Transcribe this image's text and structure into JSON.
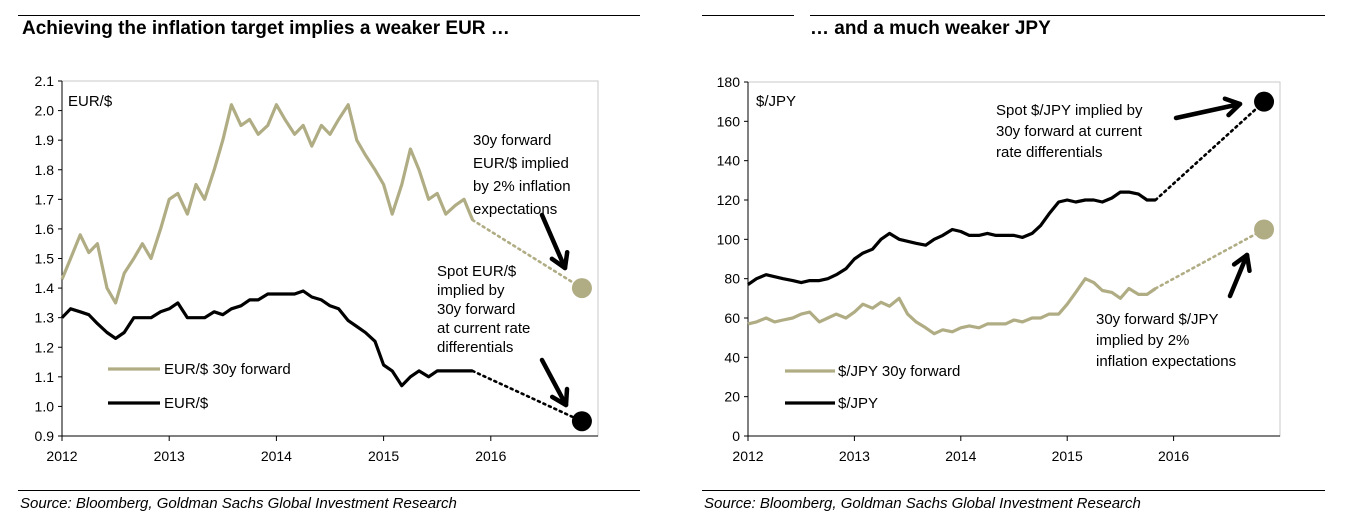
{
  "colors": {
    "black": "#000000",
    "forward": "#b0ad85",
    "box": "#c8c8c8"
  },
  "chart_data": [
    {
      "type": "line",
      "id": "left",
      "title": "Achieving the inflation target implies a weaker EUR …",
      "source": "Source: Bloomberg, Goldman Sachs Global Investment Research",
      "inner_label": "EUR/$",
      "x_ticks": [
        "2012",
        "2013",
        "2014",
        "2015",
        "2016"
      ],
      "xlim": [
        2012,
        2017
      ],
      "y_ticks": [
        "0.9",
        "1.0",
        "1.1",
        "1.2",
        "1.3",
        "1.4",
        "1.5",
        "1.6",
        "1.7",
        "1.8",
        "1.9",
        "2.0",
        "2.1"
      ],
      "ylim": [
        0.9,
        2.1
      ],
      "legend": [
        "EUR/$ 30y forward",
        "EUR/$"
      ],
      "series": [
        {
          "name": "EUR/$ 30y forward",
          "color": "#b0ad85",
          "x": [
            2012.0,
            2012.08,
            2012.17,
            2012.25,
            2012.33,
            2012.42,
            2012.5,
            2012.58,
            2012.67,
            2012.75,
            2012.83,
            2012.92,
            2013.0,
            2013.08,
            2013.17,
            2013.25,
            2013.33,
            2013.42,
            2013.5,
            2013.58,
            2013.67,
            2013.75,
            2013.83,
            2013.92,
            2014.0,
            2014.08,
            2014.17,
            2014.25,
            2014.33,
            2014.42,
            2014.5,
            2014.58,
            2014.67,
            2014.75,
            2014.83,
            2014.92,
            2015.0,
            2015.08,
            2015.17,
            2015.25,
            2015.33,
            2015.42,
            2015.5,
            2015.58,
            2015.67,
            2015.75,
            2015.83
          ],
          "values": [
            1.43,
            1.5,
            1.58,
            1.52,
            1.55,
            1.4,
            1.35,
            1.45,
            1.5,
            1.55,
            1.5,
            1.6,
            1.7,
            1.72,
            1.65,
            1.75,
            1.7,
            1.8,
            1.9,
            2.02,
            1.95,
            1.97,
            1.92,
            1.95,
            2.02,
            1.97,
            1.92,
            1.95,
            1.88,
            1.95,
            1.92,
            1.97,
            2.02,
            1.9,
            1.85,
            1.8,
            1.75,
            1.65,
            1.75,
            1.87,
            1.8,
            1.7,
            1.72,
            1.65,
            1.68,
            1.7,
            1.63
          ]
        },
        {
          "name": "EUR/$",
          "color": "#000000",
          "x": [
            2012.0,
            2012.08,
            2012.17,
            2012.25,
            2012.33,
            2012.42,
            2012.5,
            2012.58,
            2012.67,
            2012.75,
            2012.83,
            2012.92,
            2013.0,
            2013.08,
            2013.17,
            2013.25,
            2013.33,
            2013.42,
            2013.5,
            2013.58,
            2013.67,
            2013.75,
            2013.83,
            2013.92,
            2014.0,
            2014.08,
            2014.17,
            2014.25,
            2014.33,
            2014.42,
            2014.5,
            2014.58,
            2014.67,
            2014.75,
            2014.83,
            2014.92,
            2015.0,
            2015.08,
            2015.17,
            2015.25,
            2015.33,
            2015.42,
            2015.5,
            2015.58,
            2015.67,
            2015.75,
            2015.83
          ],
          "values": [
            1.3,
            1.33,
            1.32,
            1.31,
            1.28,
            1.25,
            1.23,
            1.25,
            1.3,
            1.3,
            1.3,
            1.32,
            1.33,
            1.35,
            1.3,
            1.3,
            1.3,
            1.32,
            1.31,
            1.33,
            1.34,
            1.36,
            1.36,
            1.38,
            1.38,
            1.38,
            1.38,
            1.39,
            1.37,
            1.36,
            1.34,
            1.33,
            1.29,
            1.27,
            1.25,
            1.22,
            1.14,
            1.12,
            1.07,
            1.1,
            1.12,
            1.1,
            1.12,
            1.12,
            1.12,
            1.12,
            1.12
          ]
        }
      ],
      "dotted_extensions": [
        {
          "series": "EUR/$ 30y forward",
          "from": [
            2015.83,
            1.63
          ],
          "to": [
            2016.85,
            1.4
          ],
          "color": "#b0ad85"
        },
        {
          "series": "EUR/$",
          "from": [
            2015.83,
            1.12
          ],
          "to": [
            2016.85,
            0.95
          ],
          "color": "#000000"
        }
      ],
      "end_points": [
        {
          "x": 2016.85,
          "y": 1.4,
          "color": "#b0ad85"
        },
        {
          "x": 2016.85,
          "y": 0.95,
          "color": "#000000"
        }
      ],
      "annotations": [
        {
          "lines": [
            "30y forward",
            "EUR/$ implied",
            "by 2% inflation",
            "expectations"
          ],
          "anchor": [
            2016.6,
            2.0
          ]
        },
        {
          "lines": [
            "Spot EUR/$",
            "implied by",
            "30y forward",
            "at current rate",
            "differentials"
          ],
          "anchor": [
            2016.55,
            1.45
          ]
        }
      ]
    },
    {
      "type": "line",
      "id": "right",
      "title": "… and a much weaker JPY",
      "source": "Source: Bloomberg, Goldman Sachs Global Investment Research",
      "inner_label": "$/JPY",
      "x_ticks": [
        "2012",
        "2013",
        "2014",
        "2015",
        "2016"
      ],
      "xlim": [
        2012,
        2017
      ],
      "y_ticks": [
        "0",
        "20",
        "40",
        "60",
        "80",
        "100",
        "120",
        "140",
        "160",
        "180"
      ],
      "ylim": [
        0,
        180
      ],
      "legend": [
        "$/JPY 30y forward",
        "$/JPY"
      ],
      "series": [
        {
          "name": "$/JPY 30y forward",
          "color": "#b0ad85",
          "x": [
            2012.0,
            2012.08,
            2012.17,
            2012.25,
            2012.33,
            2012.42,
            2012.5,
            2012.58,
            2012.67,
            2012.75,
            2012.83,
            2012.92,
            2013.0,
            2013.08,
            2013.17,
            2013.25,
            2013.33,
            2013.42,
            2013.5,
            2013.58,
            2013.67,
            2013.75,
            2013.83,
            2013.92,
            2014.0,
            2014.08,
            2014.17,
            2014.25,
            2014.33,
            2014.42,
            2014.5,
            2014.58,
            2014.67,
            2014.75,
            2014.83,
            2014.92,
            2015.0,
            2015.08,
            2015.17,
            2015.25,
            2015.33,
            2015.42,
            2015.5,
            2015.58,
            2015.67,
            2015.75,
            2015.83
          ],
          "values": [
            57,
            58,
            60,
            58,
            59,
            60,
            62,
            63,
            58,
            60,
            62,
            60,
            63,
            67,
            65,
            68,
            66,
            70,
            62,
            58,
            55,
            52,
            54,
            53,
            55,
            56,
            55,
            57,
            57,
            57,
            59,
            58,
            60,
            60,
            62,
            62,
            67,
            73,
            80,
            78,
            74,
            73,
            70,
            75,
            72,
            72,
            75
          ]
        },
        {
          "name": "$/JPY",
          "color": "#000000",
          "x": [
            2012.0,
            2012.08,
            2012.17,
            2012.25,
            2012.33,
            2012.42,
            2012.5,
            2012.58,
            2012.67,
            2012.75,
            2012.83,
            2012.92,
            2013.0,
            2013.08,
            2013.17,
            2013.25,
            2013.33,
            2013.42,
            2013.5,
            2013.58,
            2013.67,
            2013.75,
            2013.83,
            2013.92,
            2014.0,
            2014.08,
            2014.17,
            2014.25,
            2014.33,
            2014.42,
            2014.5,
            2014.58,
            2014.67,
            2014.75,
            2014.83,
            2014.92,
            2015.0,
            2015.08,
            2015.17,
            2015.25,
            2015.33,
            2015.42,
            2015.5,
            2015.58,
            2015.67,
            2015.75,
            2015.83
          ],
          "values": [
            77,
            80,
            82,
            81,
            80,
            79,
            78,
            79,
            79,
            80,
            82,
            85,
            90,
            93,
            95,
            100,
            103,
            100,
            99,
            98,
            97,
            100,
            102,
            105,
            104,
            102,
            102,
            103,
            102,
            102,
            102,
            101,
            103,
            107,
            113,
            119,
            120,
            119,
            120,
            120,
            119,
            121,
            124,
            124,
            123,
            120,
            120
          ]
        }
      ],
      "dotted_extensions": [
        {
          "series": "$/JPY",
          "from": [
            2015.83,
            120
          ],
          "to": [
            2016.85,
            170
          ],
          "color": "#000000"
        },
        {
          "series": "$/JPY 30y forward",
          "from": [
            2015.83,
            75
          ],
          "to": [
            2016.85,
            105
          ],
          "color": "#b0ad85"
        }
      ],
      "end_points": [
        {
          "x": 2016.85,
          "y": 170,
          "color": "#000000"
        },
        {
          "x": 2016.85,
          "y": 105,
          "color": "#b0ad85"
        }
      ],
      "annotations": [
        {
          "lines": [
            "Spot $/JPY implied by",
            "30y forward at current",
            "rate differentials"
          ],
          "anchor": [
            2014.35,
            169
          ]
        },
        {
          "lines": [
            "30y forward $/JPY",
            "implied by 2%",
            "inflation expectations"
          ],
          "anchor": [
            2015.3,
            58
          ]
        }
      ]
    }
  ]
}
